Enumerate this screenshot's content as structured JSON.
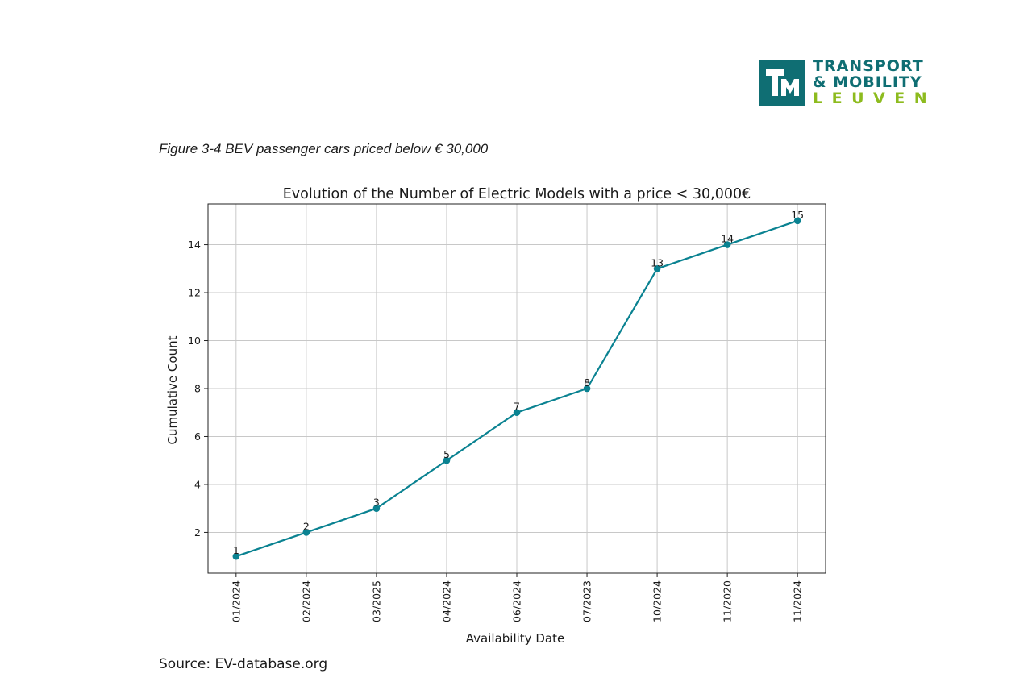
{
  "logo": {
    "line1": "TRANSPORT",
    "line2": "& MOBILITY",
    "line3": "LEUVEN",
    "mark_color": "#0f6e73",
    "accent_color": "#8dbb1e"
  },
  "figure_caption": "Figure 3-4 BEV passenger cars priced below € 30,000",
  "source": "Source: EV-database.org",
  "chart_data": {
    "type": "line",
    "title": "Evolution of the Number of Electric Models with a price < 30,000€",
    "xlabel": "Availability Date",
    "ylabel": "Cumulative Count",
    "categories": [
      "01/2024",
      "02/2024",
      "03/2025",
      "04/2024",
      "06/2024",
      "07/2023",
      "10/2024",
      "11/2020",
      "11/2024"
    ],
    "values": [
      1,
      2,
      3,
      5,
      7,
      8,
      13,
      14,
      15
    ],
    "ylim": [
      0.3,
      15.7
    ],
    "yticks": [
      2,
      4,
      6,
      8,
      10,
      12,
      14
    ],
    "grid": true,
    "line_color": "#0a8291",
    "point_labels": true
  }
}
